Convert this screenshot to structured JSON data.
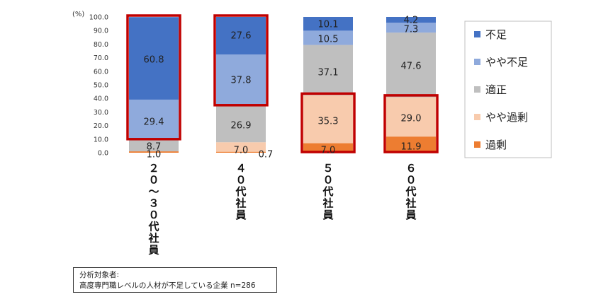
{
  "chart_data": {
    "type": "bar",
    "stacked": true,
    "unit_label": "(%)",
    "yticks": [
      "100.0",
      "90.0",
      "80.0",
      "70.0",
      "60.0",
      "50.0",
      "40.0",
      "30.0",
      "20.0",
      "10.0",
      "0.0"
    ],
    "ylim": [
      0,
      100
    ],
    "categories": [
      "２０～３０代社員",
      "４０代社員",
      "５０代社員",
      "６０代社員"
    ],
    "series": [
      {
        "name": "過剰",
        "color": "#ED7D31",
        "values": [
          1.0,
          0.7,
          7.0,
          11.9
        ]
      },
      {
        "name": "やや過剰",
        "color": "#F8CBAD",
        "values": [
          0.0,
          7.0,
          35.3,
          29.0
        ]
      },
      {
        "name": "適正",
        "color": "#BFBFBF",
        "values": [
          8.7,
          26.9,
          37.1,
          47.6
        ]
      },
      {
        "name": "やや不足",
        "color": "#8FAADC",
        "values": [
          29.4,
          37.8,
          10.5,
          7.3
        ]
      },
      {
        "name": "不足",
        "color": "#4472C4",
        "values": [
          60.8,
          27.6,
          10.1,
          4.2
        ]
      }
    ],
    "legend_order": [
      "不足",
      "やや不足",
      "適正",
      "やや過剰",
      "過剰"
    ],
    "legend_position": "right",
    "highlight_color": "#C00000"
  },
  "note": {
    "line1": "分析対象者:",
    "line2": "高度専門職レベルの人材が不足している企業 n=286"
  }
}
